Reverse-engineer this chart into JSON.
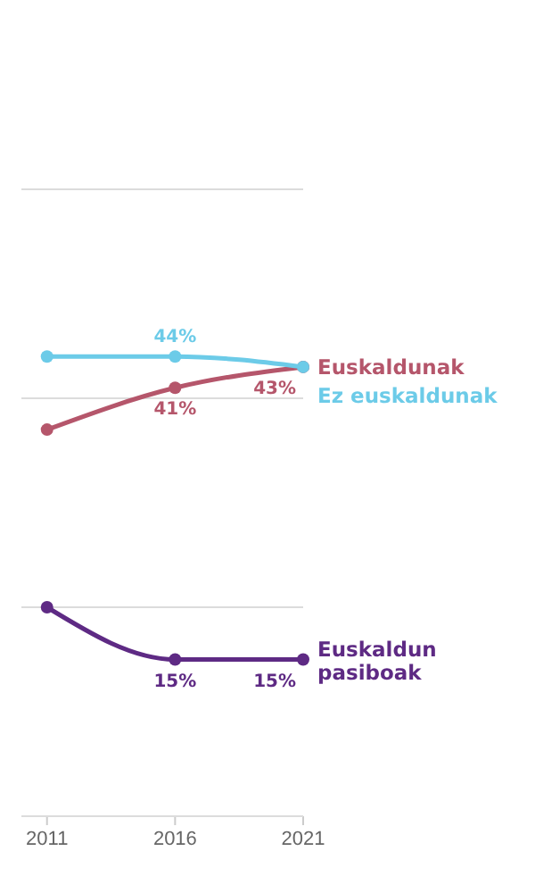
{
  "chart_data": {
    "type": "line",
    "x": [
      2011,
      2016,
      2021
    ],
    "xlim": [
      2010,
      2021
    ],
    "xticks": [
      2011,
      2016,
      2021
    ],
    "ylim": [
      0,
      60
    ],
    "yticks": [
      {
        "value": 0,
        "label": null
      },
      {
        "value": 20,
        "label": null
      },
      {
        "value": 40,
        "label": null
      },
      {
        "value": 60,
        "label": null
      }
    ],
    "tick_labels": "x",
    "grid": "y",
    "marker": "circle",
    "line_style": "solid",
    "series": [
      {
        "name": "Euskaldunak",
        "color": "#b5566b",
        "values": [
          37,
          41,
          43
        ],
        "value_labels": [
          null,
          "41%",
          "43%"
        ]
      },
      {
        "name": "Ez euskaldunak",
        "color": "#6ccbe8",
        "values": [
          44,
          44,
          43
        ],
        "value_labels": [
          null,
          "44%",
          null
        ]
      },
      {
        "name": "Euskaldun pasiboak",
        "color": "#5e2a84",
        "values": [
          20,
          15,
          15
        ],
        "value_labels": [
          null,
          "15%",
          "15%"
        ]
      }
    ]
  }
}
